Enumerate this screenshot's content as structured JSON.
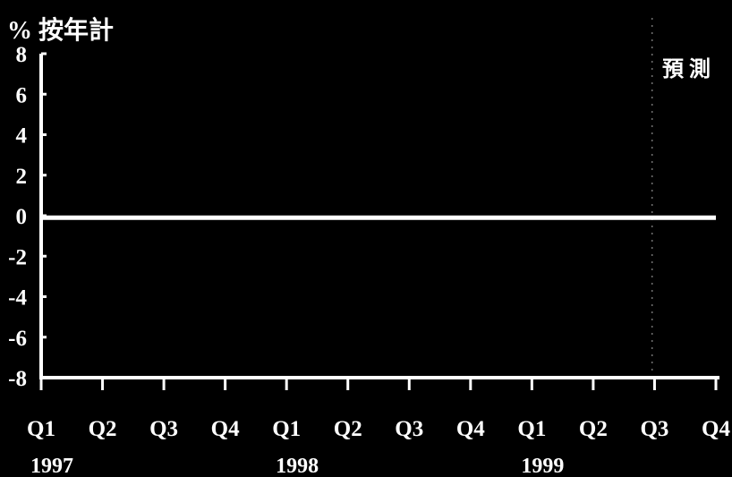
{
  "chart_data": {
    "type": "line",
    "unit_label": "% 按年計",
    "forecast_label": "預 測",
    "yticks": [
      "8",
      "6",
      "4",
      "2",
      "0",
      "-2",
      "-4",
      "-6",
      "-8"
    ],
    "ylim": [
      -8,
      8
    ],
    "categories": [
      "Q1",
      "Q2",
      "Q3",
      "Q4",
      "Q1",
      "Q2",
      "Q3",
      "Q4",
      "Q1",
      "Q2",
      "Q3",
      "Q4"
    ],
    "years": [
      {
        "label": "1997",
        "start_index": 0
      },
      {
        "label": "1998",
        "start_index": 4
      },
      {
        "label": "1999",
        "start_index": 8
      }
    ],
    "series": [
      {
        "values": [
          -0.1,
          -0.1,
          -0.1,
          -0.1,
          -0.1,
          -0.1,
          -0.1,
          -0.1,
          -0.1,
          -0.1,
          -0.1,
          -0.1
        ]
      }
    ],
    "forecast_start_index": 10,
    "colors": {
      "background": "#000000",
      "foreground": "#ffffff"
    }
  }
}
